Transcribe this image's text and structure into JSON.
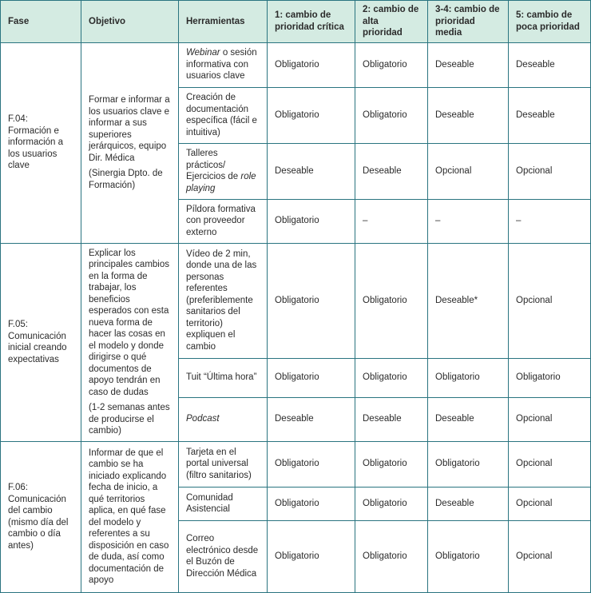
{
  "headers": [
    "Fase",
    "Objetivo",
    "Herramientas",
    "1: cambio de prioridad crítica",
    "2: cambio de alta prioridad",
    "3-4: cambio de prioridad media",
    "5: cambio de poca prioridad"
  ],
  "phases": [
    {
      "fase": "F.04: Formación e información a los usuarios clave",
      "objetivo": "Formar e informar a los usuarios clave e informar a sus superiores jerárquicos, equipo Dir. Médica",
      "objetivo_note": "(Sinergia Dpto. de Formación)",
      "rows": [
        {
          "tool": [
            {
              "t": "Webinar",
              "i": true
            },
            {
              "t": " o sesión informativa con usuarios clave",
              "i": false
            }
          ],
          "values": [
            "Obligatorio",
            "Obligatorio",
            "Deseable",
            "Deseable"
          ]
        },
        {
          "tool": [
            {
              "t": "Creación de documentación específica (fácil e intuitiva)",
              "i": false
            }
          ],
          "values": [
            "Obligatorio",
            "Obligatorio",
            "Deseable",
            "Deseable"
          ]
        },
        {
          "tool": [
            {
              "t": "Talleres prácticos/ Ejercicios de ",
              "i": false
            },
            {
              "t": "role playing",
              "i": true
            }
          ],
          "values": [
            "Deseable",
            "Deseable",
            "Opcional",
            "Opcional"
          ]
        },
        {
          "tool": [
            {
              "t": "Píldora formativa con proveedor externo",
              "i": false
            }
          ],
          "values": [
            "Obligatorio",
            "–",
            "–",
            "–"
          ]
        }
      ]
    },
    {
      "fase": "F.05: Comunicación inicial creando expectativas",
      "objetivo": "Explicar los principales cambios en la forma de trabajar, los beneficios esperados con esta nueva forma de hacer las cosas en el modelo y donde dirigirse o qué documentos de apoyo tendrán en caso de dudas",
      "objetivo_note": "(1-2 semanas antes de producirse el cambio)",
      "rows": [
        {
          "tool": [
            {
              "t": "Vídeo de 2 min, donde una de las personas referentes (preferiblemente sanitarios del territorio) expliquen el cambio",
              "i": false
            }
          ],
          "values": [
            "Obligatorio",
            "Obligatorio",
            "Deseable*",
            "Opcional"
          ]
        },
        {
          "tool": [
            {
              "t": "Tuit “Última hora”",
              "i": false
            }
          ],
          "values": [
            "Obligatorio",
            "Obligatorio",
            "Obligatorio",
            "Obligatorio"
          ]
        },
        {
          "tool": [
            {
              "t": "Podcast",
              "i": true
            }
          ],
          "values": [
            "Deseable",
            "Deseable",
            "Deseable",
            "Opcional"
          ]
        }
      ]
    },
    {
      "fase": "F.06: Comunicación del cambio (mismo día del cambio o día antes)",
      "objetivo": "Informar de que el cambio se ha iniciado explicando fecha de inicio, a qué territorios aplica, en qué fase del modelo y referentes a su disposición en caso de duda, así como documentación de apoyo",
      "objetivo_note": "",
      "rows": [
        {
          "tool": [
            {
              "t": "Tarjeta en el portal universal (filtro sanitarios)",
              "i": false
            }
          ],
          "values": [
            "Obligatorio",
            "Obligatorio",
            "Obligatorio",
            "Opcional"
          ]
        },
        {
          "tool": [
            {
              "t": "Comunidad Asistencial",
              "i": false
            }
          ],
          "values": [
            "Obligatorio",
            "Obligatorio",
            "Deseable",
            "Opcional"
          ]
        },
        {
          "tool": [
            {
              "t": "Correo electrónico desde el Buzón de Dirección Médica",
              "i": false
            }
          ],
          "values": [
            "Obligatorio",
            "Obligatorio",
            "Obligatorio",
            "Opcional"
          ]
        }
      ]
    }
  ]
}
